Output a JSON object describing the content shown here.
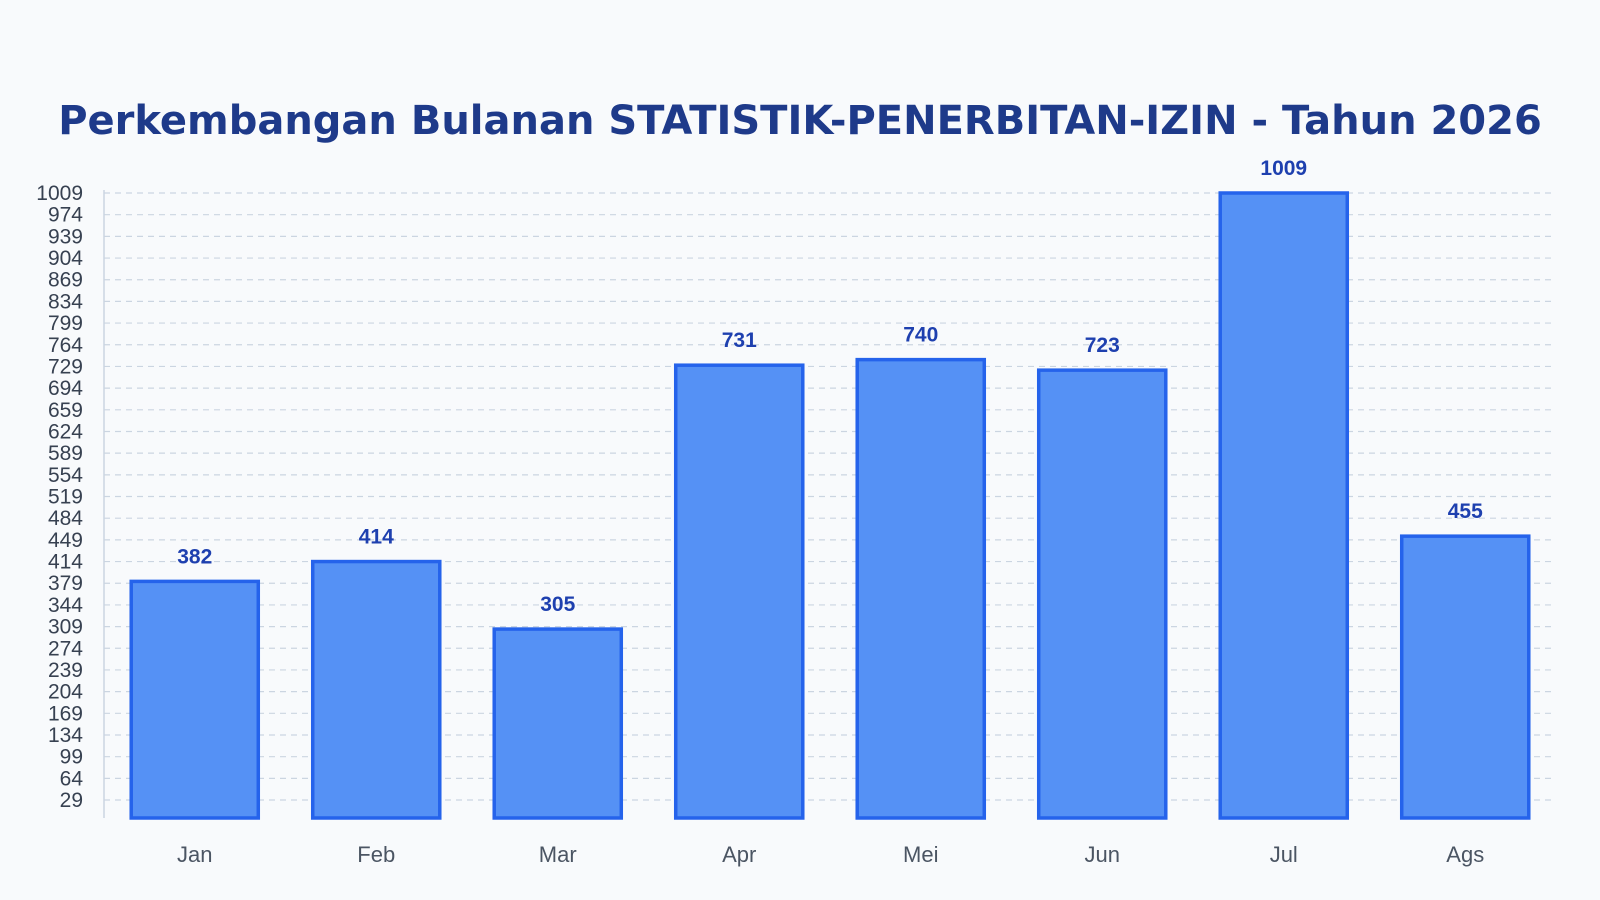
{
  "chart_data": {
    "type": "bar",
    "title": "Perkembangan Bulanan STATISTIK-PENERBITAN-IZIN - Tahun 2026",
    "xlabel": "",
    "ylabel": "",
    "categories": [
      "Jan",
      "Feb",
      "Mar",
      "Apr",
      "Mei",
      "Jun",
      "Jul",
      "Ags"
    ],
    "values": [
      382,
      414,
      305,
      731,
      740,
      723,
      1009,
      455
    ],
    "ylim": [
      0,
      1009
    ],
    "yticks": [
      29,
      64,
      99,
      134,
      169,
      204,
      239,
      274,
      309,
      344,
      379,
      414,
      449,
      484,
      519,
      554,
      589,
      624,
      659,
      694,
      729,
      764,
      799,
      834,
      869,
      904,
      939,
      974,
      1009
    ],
    "grid": true,
    "grid_style": "dashed",
    "legend": "none",
    "show_value_labels": true,
    "colors": {
      "bar_fill": "#5591f5",
      "bar_stroke": "#2563eb",
      "value_label": "#1e40af",
      "title": "#1e3a8a",
      "grid": "#cbd5e1",
      "axis": "#cbd5e1",
      "background": "#f8fafc"
    }
  }
}
